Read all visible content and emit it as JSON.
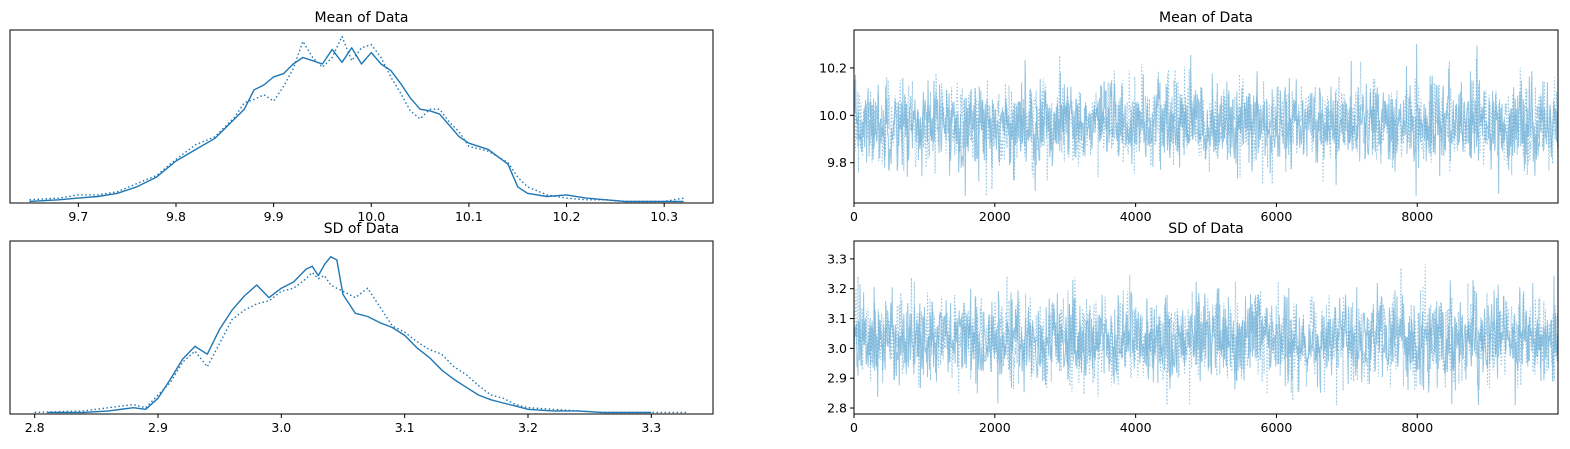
{
  "page_title": "",
  "colors": {
    "series": "#1f77b4",
    "trace": "#6baed6",
    "axis": "#000000"
  },
  "chart_data": [
    {
      "type": "line",
      "title": "Mean of Data",
      "xlabel": "",
      "ylabel": "",
      "xlim": [
        9.63,
        10.35
      ],
      "ylim": [
        0,
        1.07
      ],
      "y_ticks_visible": false,
      "x_ticks": [
        "9.7",
        "9.8",
        "9.9",
        "10.0",
        "10.1",
        "10.2",
        "10.3"
      ],
      "x_tick_values": [
        9.7,
        9.8,
        9.9,
        10.0,
        10.1,
        10.2,
        10.3
      ],
      "grid": false,
      "series": [
        {
          "style": "solid",
          "x": [
            9.65,
            9.68,
            9.7,
            9.72,
            9.74,
            9.76,
            9.78,
            9.8,
            9.82,
            9.84,
            9.86,
            9.87,
            9.88,
            9.89,
            9.9,
            9.91,
            9.92,
            9.93,
            9.94,
            9.95,
            9.96,
            9.97,
            9.98,
            9.99,
            10.0,
            10.01,
            10.02,
            10.03,
            10.04,
            10.05,
            10.06,
            10.07,
            10.08,
            10.09,
            10.1,
            10.12,
            10.14,
            10.15,
            10.16,
            10.18,
            10.2,
            10.22,
            10.24,
            10.26,
            10.28,
            10.3,
            10.32
          ],
          "y": [
            0.01,
            0.02,
            0.03,
            0.04,
            0.06,
            0.1,
            0.16,
            0.26,
            0.33,
            0.4,
            0.52,
            0.58,
            0.7,
            0.73,
            0.78,
            0.8,
            0.86,
            0.9,
            0.88,
            0.86,
            0.95,
            0.87,
            0.96,
            0.86,
            0.93,
            0.86,
            0.82,
            0.74,
            0.65,
            0.58,
            0.57,
            0.55,
            0.48,
            0.41,
            0.37,
            0.33,
            0.24,
            0.1,
            0.06,
            0.04,
            0.05,
            0.03,
            0.02,
            0.01,
            0.01,
            0.01,
            0.01
          ]
        },
        {
          "style": "dotted",
          "x": [
            9.65,
            9.68,
            9.7,
            9.72,
            9.74,
            9.76,
            9.78,
            9.8,
            9.82,
            9.84,
            9.86,
            9.87,
            9.88,
            9.89,
            9.9,
            9.91,
            9.92,
            9.93,
            9.94,
            9.95,
            9.96,
            9.97,
            9.98,
            9.99,
            10.0,
            10.01,
            10.02,
            10.03,
            10.04,
            10.05,
            10.06,
            10.07,
            10.08,
            10.09,
            10.1,
            10.12,
            10.14,
            10.15,
            10.16,
            10.18,
            10.2,
            10.22,
            10.24,
            10.26,
            10.28,
            10.3,
            10.32
          ],
          "y": [
            0.02,
            0.03,
            0.05,
            0.05,
            0.07,
            0.12,
            0.17,
            0.27,
            0.36,
            0.41,
            0.53,
            0.62,
            0.64,
            0.67,
            0.63,
            0.72,
            0.83,
            1.0,
            0.9,
            0.84,
            0.9,
            1.03,
            0.88,
            0.96,
            0.98,
            0.9,
            0.78,
            0.68,
            0.57,
            0.52,
            0.58,
            0.58,
            0.5,
            0.44,
            0.35,
            0.32,
            0.25,
            0.16,
            0.1,
            0.05,
            0.03,
            0.02,
            0.02,
            0.01,
            0.01,
            0.01,
            0.03
          ]
        }
      ]
    },
    {
      "type": "line",
      "title": "Mean of Data",
      "xlabel": "",
      "ylabel": "",
      "xlim": [
        0,
        9999
      ],
      "ylim": [
        9.63,
        10.36
      ],
      "x_ticks": [
        "0",
        "2000",
        "4000",
        "6000",
        "8000"
      ],
      "x_tick_values": [
        0,
        2000,
        4000,
        6000,
        8000
      ],
      "y_ticks": [
        "9.8",
        "10.0",
        "10.2"
      ],
      "y_tick_values": [
        9.8,
        10.0,
        10.2
      ],
      "grid": false,
      "trace": {
        "samples": 10000,
        "center": 9.96,
        "spread": 0.09,
        "min": 9.66,
        "max": 10.32,
        "chains": 2
      }
    },
    {
      "type": "line",
      "title": "SD of Data",
      "xlabel": "",
      "ylabel": "",
      "xlim": [
        2.78,
        3.35
      ],
      "ylim": [
        0,
        1.1
      ],
      "y_ticks_visible": false,
      "x_ticks": [
        "2.8",
        "2.9",
        "3.0",
        "3.1",
        "3.2",
        "3.3"
      ],
      "x_tick_values": [
        2.8,
        2.9,
        3.0,
        3.1,
        3.2,
        3.3
      ],
      "grid": false,
      "series": [
        {
          "style": "solid",
          "x": [
            2.81,
            2.84,
            2.86,
            2.88,
            2.89,
            2.9,
            2.91,
            2.92,
            2.93,
            2.94,
            2.95,
            2.96,
            2.97,
            2.98,
            2.99,
            3.0,
            3.01,
            3.02,
            3.025,
            3.03,
            3.035,
            3.04,
            3.045,
            3.05,
            3.06,
            3.07,
            3.08,
            3.09,
            3.1,
            3.11,
            3.12,
            3.13,
            3.14,
            3.15,
            3.16,
            3.17,
            3.18,
            3.19,
            3.2,
            3.22,
            3.24,
            3.26,
            3.28,
            3.3
          ],
          "y": [
            0.01,
            0.01,
            0.02,
            0.04,
            0.03,
            0.1,
            0.22,
            0.35,
            0.43,
            0.38,
            0.54,
            0.66,
            0.75,
            0.82,
            0.74,
            0.8,
            0.84,
            0.92,
            0.94,
            0.88,
            0.95,
            1.0,
            0.98,
            0.76,
            0.64,
            0.62,
            0.58,
            0.55,
            0.5,
            0.42,
            0.36,
            0.28,
            0.22,
            0.17,
            0.12,
            0.09,
            0.07,
            0.05,
            0.03,
            0.02,
            0.02,
            0.01,
            0.01,
            0.01
          ]
        },
        {
          "style": "dotted",
          "x": [
            2.8,
            2.84,
            2.86,
            2.88,
            2.89,
            2.9,
            2.91,
            2.92,
            2.93,
            2.94,
            2.95,
            2.96,
            2.97,
            2.98,
            2.99,
            3.0,
            3.01,
            3.02,
            3.025,
            3.03,
            3.035,
            3.04,
            3.045,
            3.05,
            3.06,
            3.07,
            3.08,
            3.09,
            3.1,
            3.11,
            3.12,
            3.13,
            3.14,
            3.15,
            3.16,
            3.17,
            3.18,
            3.19,
            3.2,
            3.22,
            3.24,
            3.26,
            3.28,
            3.3,
            3.33
          ],
          "y": [
            0.01,
            0.02,
            0.04,
            0.06,
            0.04,
            0.12,
            0.2,
            0.33,
            0.4,
            0.3,
            0.45,
            0.6,
            0.66,
            0.7,
            0.72,
            0.78,
            0.8,
            0.86,
            0.9,
            0.86,
            0.88,
            0.82,
            0.8,
            0.78,
            0.74,
            0.8,
            0.68,
            0.56,
            0.52,
            0.46,
            0.41,
            0.38,
            0.3,
            0.25,
            0.18,
            0.12,
            0.1,
            0.06,
            0.04,
            0.03,
            0.02,
            0.01,
            0.01,
            0.01,
            0.01
          ]
        }
      ]
    },
    {
      "type": "line",
      "title": "SD of Data",
      "xlabel": "",
      "ylabel": "",
      "xlim": [
        0,
        9999
      ],
      "ylim": [
        2.78,
        3.36
      ],
      "x_ticks": [
        "0",
        "2000",
        "4000",
        "6000",
        "8000"
      ],
      "x_tick_values": [
        0,
        2000,
        4000,
        6000,
        8000
      ],
      "y_ticks": [
        "2.8",
        "2.9",
        "3.0",
        "3.1",
        "3.2",
        "3.3"
      ],
      "y_tick_values": [
        2.8,
        2.9,
        3.0,
        3.1,
        3.2,
        3.3
      ],
      "grid": false,
      "trace": {
        "samples": 10000,
        "center": 3.03,
        "spread": 0.075,
        "min": 2.81,
        "max": 3.34,
        "chains": 2
      }
    }
  ]
}
